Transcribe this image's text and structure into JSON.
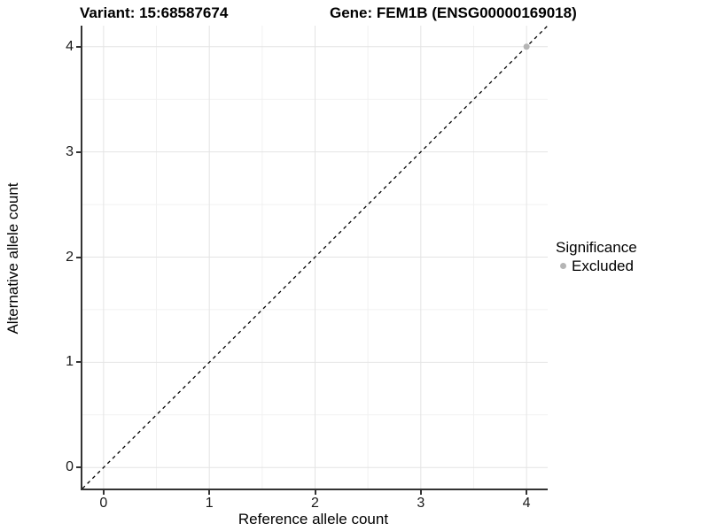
{
  "titles": {
    "variant": "Variant: 15:68587674",
    "gene": "Gene: FEM1B (ENSG00000169018)"
  },
  "axes": {
    "x": {
      "label": "Reference allele count",
      "tick_labels": [
        "0",
        "1",
        "2",
        "3",
        "4"
      ]
    },
    "y": {
      "label": "Alternative allele count",
      "tick_labels": [
        "0",
        "1",
        "2",
        "3",
        "4"
      ]
    }
  },
  "legend": {
    "title": "Significance",
    "items": [
      {
        "label": "Excluded",
        "color": "#b5b5b5"
      }
    ]
  },
  "colors": {
    "background": "#ffffff",
    "axis_line": "#333333",
    "grid_major": "#e4e4e4",
    "grid_minor": "#f1f1f1",
    "reference_line": "#000000",
    "point_excluded": "#b5b5b5"
  },
  "chart_data": {
    "type": "scatter",
    "title": "Variant: 15:68587674 | Gene: FEM1B (ENSG00000169018)",
    "xlabel": "Reference allele count",
    "ylabel": "Alternative allele count",
    "xlim": [
      -0.2,
      4.2
    ],
    "ylim": [
      -0.2,
      4.2
    ],
    "x_major_ticks": [
      0,
      1,
      2,
      3,
      4
    ],
    "y_major_ticks": [
      0,
      1,
      2,
      3,
      4
    ],
    "x_minor_ticks": [
      0.5,
      1.5,
      2.5,
      3.5
    ],
    "y_minor_ticks": [
      0.5,
      1.5,
      2.5,
      3.5
    ],
    "grid": "on",
    "legend_position": "right",
    "series": [
      {
        "name": "Excluded",
        "color": "#b5b5b5",
        "point_radius": 3.5,
        "points": [
          {
            "x": 4,
            "y": 4
          }
        ]
      }
    ],
    "reference_line": {
      "kind": "identity y=x",
      "from": {
        "x": -0.2,
        "y": -0.2
      },
      "to": {
        "x": 4.2,
        "y": 4.2
      },
      "style": "dashed",
      "color": "#000000"
    }
  }
}
